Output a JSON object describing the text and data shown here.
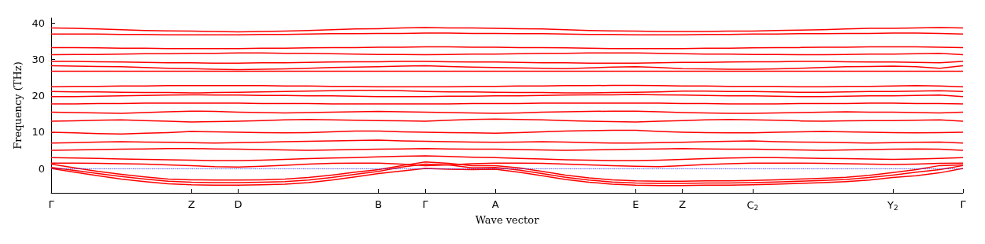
{
  "chart_data": {
    "type": "line",
    "xlabel": "Wave vector",
    "ylabel": "Frequency (THz)",
    "ylim": [
      -6.7,
      41.4
    ],
    "yticks": [
      0,
      10,
      20,
      30,
      40
    ],
    "categories": [
      "Γ",
      null,
      null,
      null,
      null,
      null,
      "Z",
      null,
      "D",
      null,
      null,
      null,
      null,
      null,
      "B",
      null,
      "Γ",
      null,
      null,
      "A",
      null,
      null,
      null,
      null,
      null,
      "E",
      null,
      "Z",
      null,
      null,
      "C$_{2}$",
      null,
      null,
      null,
      null,
      null,
      "Y$_{2}$",
      null,
      null,
      "Γ"
    ],
    "grid": false,
    "marker": "none",
    "line_style": "solid",
    "ref_lines": [
      {
        "axis": "y",
        "value": 0,
        "color": "#0000ff",
        "line_style": "dotted"
      }
    ],
    "series": [
      {
        "color": "#ff0000",
        "values": [
          0,
          -1,
          -2,
          -2.9,
          -3.6,
          -4.2,
          -4.5,
          -4.6,
          -4.6,
          -4.5,
          -4.3,
          -3.9,
          -3.2,
          -2.3,
          -1.4,
          -0.7,
          0,
          -0.2,
          -0.3,
          -0.2,
          -1,
          -2,
          -3,
          -3.8,
          -4.3,
          -4.6,
          -4.7,
          -4.7,
          -4.6,
          -4.6,
          -4.5,
          -4.3,
          -4.1,
          -3.9,
          -3.6,
          -3.2,
          -2.5,
          -2,
          -1.2,
          0
        ]
      },
      {
        "color": "#ff0000",
        "values": [
          0.3,
          -0.5,
          -1.4,
          -2.2,
          -2.9,
          -3.5,
          -3.8,
          -3.9,
          -3.9,
          -3.8,
          -3.6,
          -3.2,
          -2.5,
          -1.6,
          -0.8,
          0.4,
          1.2,
          1,
          0.2,
          0.3,
          -0.4,
          -1.4,
          -2.4,
          -3.2,
          -3.7,
          -4,
          -4.1,
          -4.1,
          -4,
          -4,
          -3.9,
          -3.7,
          -3.5,
          -3.3,
          -3,
          -2.5,
          -1.8,
          -1,
          -0.3,
          0.8
        ]
      },
      {
        "color": "#ff0000",
        "values": [
          1.2,
          0.2,
          -0.8,
          -1.6,
          -2.3,
          -2.9,
          -3.1,
          -3.2,
          -3.2,
          -3.1,
          -2.9,
          -2.5,
          -1.8,
          -1,
          -0.3,
          0.8,
          1.8,
          1.4,
          0.8,
          0.8,
          0.2,
          -0.8,
          -1.8,
          -2.6,
          -3.1,
          -3.4,
          -3.5,
          -3.5,
          -3.4,
          -3.4,
          -3.3,
          -3.1,
          -2.9,
          -2.7,
          -2.4,
          -1.9,
          -1.1,
          -0.3,
          0.8,
          1
        ]
      },
      {
        "color": "#ff0000",
        "values": [
          1.5,
          1.5,
          1.4,
          1.3,
          1.2,
          1,
          0.8,
          0.5,
          0.4,
          0.6,
          0.9,
          1.2,
          1.4,
          1.5,
          1.5,
          1.2,
          0.8,
          1,
          1.3,
          1.5,
          1.5,
          1.4,
          1.2,
          1,
          0.8,
          0.6,
          0.5,
          0.8,
          1.1,
          1.3,
          1.5,
          1.5,
          1.5,
          1.4,
          1.3,
          1.2,
          1.1,
          1.2,
          1.4,
          1.5
        ]
      },
      {
        "color": "#ff0000",
        "values": [
          3,
          2.9,
          2.8,
          2.6,
          2.5,
          2.4,
          2.3,
          2.2,
          2.2,
          2.3,
          2.5,
          2.7,
          2.9,
          3,
          3.2,
          3.4,
          3.5,
          3.3,
          3.1,
          3,
          2.8,
          2.6,
          2.4,
          2.3,
          2.2,
          2.2,
          2.3,
          2.5,
          2.7,
          2.9,
          3,
          3,
          2.9,
          2.8,
          2.7,
          2.6,
          2.5,
          2.6,
          2.8,
          3
        ]
      },
      {
        "color": "#ff0000",
        "values": [
          5,
          5.1,
          5.2,
          5.3,
          5.4,
          5.5,
          5.5,
          5.4,
          5.3,
          5.2,
          5.1,
          5,
          5.1,
          5.2,
          5.3,
          5.4,
          5.5,
          5.4,
          5.3,
          5.3,
          5.2,
          5.1,
          5,
          5.1,
          5.2,
          5.3,
          5.4,
          5.5,
          5.4,
          5.3,
          5.3,
          5.2,
          5.1,
          5,
          5.1,
          5.2,
          5.3,
          5.4,
          5.3,
          5
        ]
      },
      {
        "color": "#ff0000",
        "values": [
          7,
          7.1,
          7.3,
          7.4,
          7.3,
          7.2,
          7.1,
          7,
          7.1,
          7.2,
          7.4,
          7.5,
          7.6,
          7.7,
          7.8,
          7.6,
          7.5,
          7.4,
          7.3,
          7.2,
          7.3,
          7.4,
          7.3,
          7.1,
          7,
          7,
          7.1,
          7.2,
          7.4,
          7.5,
          7.6,
          7.4,
          7.3,
          7.2,
          7.1,
          7,
          7.1,
          7.2,
          7.3,
          7
        ]
      },
      {
        "color": "#ff0000",
        "values": [
          10,
          9.8,
          9.6,
          9.5,
          9.7,
          9.9,
          10.2,
          10.1,
          10,
          9.9,
          9.8,
          9.9,
          10.1,
          10.3,
          10.3,
          10.1,
          10,
          9.9,
          9.8,
          9.7,
          9.9,
          10.1,
          10.3,
          10.4,
          10.5,
          10.5,
          10.2,
          10,
          9.9,
          9.8,
          9.8,
          10,
          10.1,
          10.2,
          10.1,
          10,
          9.9,
          9.8,
          9.9,
          10
        ]
      },
      {
        "color": "#ff0000",
        "values": [
          13,
          13.1,
          13.3,
          13.4,
          13.2,
          13,
          12.8,
          12.9,
          13,
          13.2,
          13.4,
          13.5,
          13.4,
          13.3,
          13.2,
          13.1,
          13,
          13.3,
          13.5,
          13.6,
          13.5,
          13.4,
          13.2,
          13,
          12.9,
          12.8,
          13,
          13.2,
          13.4,
          13.5,
          13.4,
          13.3,
          13.1,
          13,
          13.1,
          13.2,
          13.2,
          13.3,
          13.4,
          13
        ]
      },
      {
        "color": "#ff0000",
        "values": [
          15.5,
          15.4,
          15.3,
          15.2,
          15.4,
          15.6,
          15.8,
          15.7,
          15.5,
          15.4,
          15.3,
          15.4,
          15.5,
          15.6,
          15.7,
          15.6,
          15.5,
          15.4,
          15.3,
          15.2,
          15.3,
          15.5,
          15.6,
          15.7,
          15.8,
          15.8,
          15.6,
          15.4,
          15.3,
          15.2,
          15.2,
          15.3,
          15.4,
          15.5,
          15.6,
          15.5,
          15.5,
          15.4,
          15.3,
          15.5
        ]
      },
      {
        "color": "#ff0000",
        "values": [
          17.8,
          17.8,
          17.9,
          17.9,
          18,
          18,
          18,
          18,
          18,
          17.9,
          17.9,
          17.9,
          17.8,
          17.8,
          17.8,
          17.8,
          17.8,
          17.8,
          17.9,
          17.9,
          17.9,
          18,
          18,
          18,
          18,
          18,
          18,
          17.9,
          17.9,
          17.8,
          17.8,
          17.8,
          17.9,
          17.9,
          17.9,
          18,
          18,
          17.9,
          17.9,
          17.8
        ]
      },
      {
        "color": "#ff0000",
        "values": [
          19.8,
          19.8,
          19.9,
          20,
          20.1,
          20.2,
          20.3,
          20.2,
          20.2,
          20.1,
          20.1,
          20,
          20,
          19.9,
          19.8,
          19.8,
          19.8,
          19.9,
          19.9,
          20,
          20,
          20.1,
          20.2,
          20.3,
          20.3,
          20.4,
          20.3,
          20.2,
          20.1,
          20,
          20,
          19.9,
          19.8,
          19.8,
          19.9,
          20,
          20,
          20.1,
          20.2,
          19.8
        ]
      },
      {
        "color": "#ff0000",
        "values": [
          21.2,
          21.1,
          21.1,
          21,
          20.9,
          20.9,
          20.8,
          20.9,
          21,
          21.1,
          21.2,
          21.3,
          21.4,
          21.5,
          21.5,
          21.4,
          21.2,
          21.1,
          21.1,
          21,
          20.9,
          20.9,
          20.8,
          20.8,
          20.9,
          21,
          21.1,
          21.3,
          21.3,
          21.2,
          21.2,
          21.1,
          21,
          21,
          21.1,
          21.2,
          21.2,
          21.3,
          21.4,
          21.2
        ]
      },
      {
        "color": "#ff0000",
        "values": [
          22.5,
          22.6,
          22.6,
          22.7,
          22.7,
          22.8,
          22.8,
          22.8,
          22.8,
          22.8,
          22.7,
          22.7,
          22.6,
          22.6,
          22.5,
          22.5,
          22.5,
          22.5,
          22.6,
          22.6,
          22.7,
          22.7,
          22.8,
          22.8,
          22.9,
          22.9,
          22.8,
          22.7,
          22.7,
          22.6,
          22.6,
          22.6,
          22.5,
          22.5,
          22.6,
          22.6,
          22.7,
          22.8,
          22.7,
          22.5
        ]
      },
      {
        "color": "#ff0000",
        "values": [
          26.8,
          26.8,
          26.8,
          26.8,
          26.8,
          26.8,
          26.8,
          26.8,
          26.8,
          26.8,
          26.8,
          26.8,
          26.8,
          26.8,
          26.8,
          26.8,
          26.8,
          26.8,
          26.8,
          26.8,
          26.8,
          26.8,
          26.8,
          26.8,
          26.8,
          26.8,
          26.8,
          26.8,
          26.8,
          26.8,
          26.8,
          26.8,
          26.8,
          26.8,
          26.8,
          26.8,
          26.8,
          26.8,
          26.8,
          26.8
        ]
      },
      {
        "color": "#ff0000",
        "values": [
          28.3,
          28.2,
          28.1,
          28,
          27.8,
          27.6,
          27.5,
          27.3,
          27.2,
          27.3,
          27.4,
          27.6,
          27.8,
          27.9,
          28,
          28.2,
          28.3,
          28.1,
          27.9,
          27.8,
          27.7,
          27.6,
          27.5,
          27.7,
          27.9,
          28,
          27.8,
          27.5,
          27.4,
          27.3,
          27.3,
          27.4,
          27.6,
          27.8,
          28,
          28.1,
          28.2,
          28,
          27.6,
          28.3
        ]
      },
      {
        "color": "#ff0000",
        "values": [
          29.5,
          29.5,
          29.4,
          29.3,
          29.2,
          29.1,
          29.1,
          29,
          29,
          29.1,
          29.1,
          29.2,
          29.3,
          29.4,
          29.4,
          29.5,
          29.5,
          29.4,
          29.3,
          29.3,
          29.2,
          29.1,
          29.1,
          29,
          29,
          29,
          29.1,
          29.2,
          29.2,
          29.3,
          29.4,
          29.4,
          29.5,
          29.5,
          29.4,
          29.3,
          29.3,
          29.2,
          29.1,
          29.5
        ]
      },
      {
        "color": "#ff0000",
        "values": [
          31.3,
          31.4,
          31.4,
          31.5,
          31.6,
          31.6,
          31.7,
          31.7,
          31.8,
          31.8,
          31.7,
          31.7,
          31.6,
          31.5,
          31.4,
          31.4,
          31.3,
          31.4,
          31.5,
          31.5,
          31.6,
          31.7,
          31.7,
          31.8,
          31.8,
          31.8,
          31.7,
          31.6,
          31.5,
          31.5,
          31.4,
          31.4,
          31.3,
          31.3,
          31.4,
          31.5,
          31.5,
          31.6,
          31.7,
          31.3
        ]
      },
      {
        "color": "#ff0000",
        "values": [
          33.3,
          33.3,
          33.2,
          33.1,
          33.1,
          33,
          33,
          33,
          33,
          33.1,
          33.1,
          33.2,
          33.3,
          33.3,
          33.4,
          33.4,
          33.5,
          33.5,
          33.4,
          33.4,
          33.3,
          33.3,
          33.2,
          33.1,
          33,
          33,
          33,
          33,
          33.1,
          33.1,
          33.2,
          33.3,
          33.3,
          33.4,
          33.4,
          33.5,
          33.5,
          33.5,
          33.4,
          33.3
        ]
      },
      {
        "color": "#ff0000",
        "values": [
          37,
          37,
          37,
          36.9,
          36.9,
          36.8,
          36.8,
          36.8,
          36.8,
          36.9,
          36.9,
          37,
          37.1,
          37.1,
          37.2,
          37.2,
          37.3,
          37.3,
          37.2,
          37.2,
          37.1,
          37.1,
          37,
          36.9,
          36.9,
          36.8,
          36.8,
          36.8,
          36.9,
          36.9,
          37,
          37,
          37.1,
          37.1,
          37.2,
          37.2,
          37.3,
          37.3,
          37.2,
          37
        ]
      },
      {
        "color": "#ff0000",
        "values": [
          38.7,
          38.6,
          38.4,
          38.2,
          38,
          37.9,
          37.8,
          37.7,
          37.6,
          37.7,
          37.8,
          38,
          38.2,
          38.4,
          38.5,
          38.7,
          38.8,
          38.7,
          38.7,
          38.6,
          38.5,
          38.4,
          38.2,
          38,
          37.9,
          37.8,
          37.7,
          37.7,
          37.7,
          37.8,
          37.8,
          38,
          38.1,
          38.2,
          38.4,
          38.6,
          38.6,
          38.7,
          38.8,
          38.7
        ]
      }
    ]
  }
}
